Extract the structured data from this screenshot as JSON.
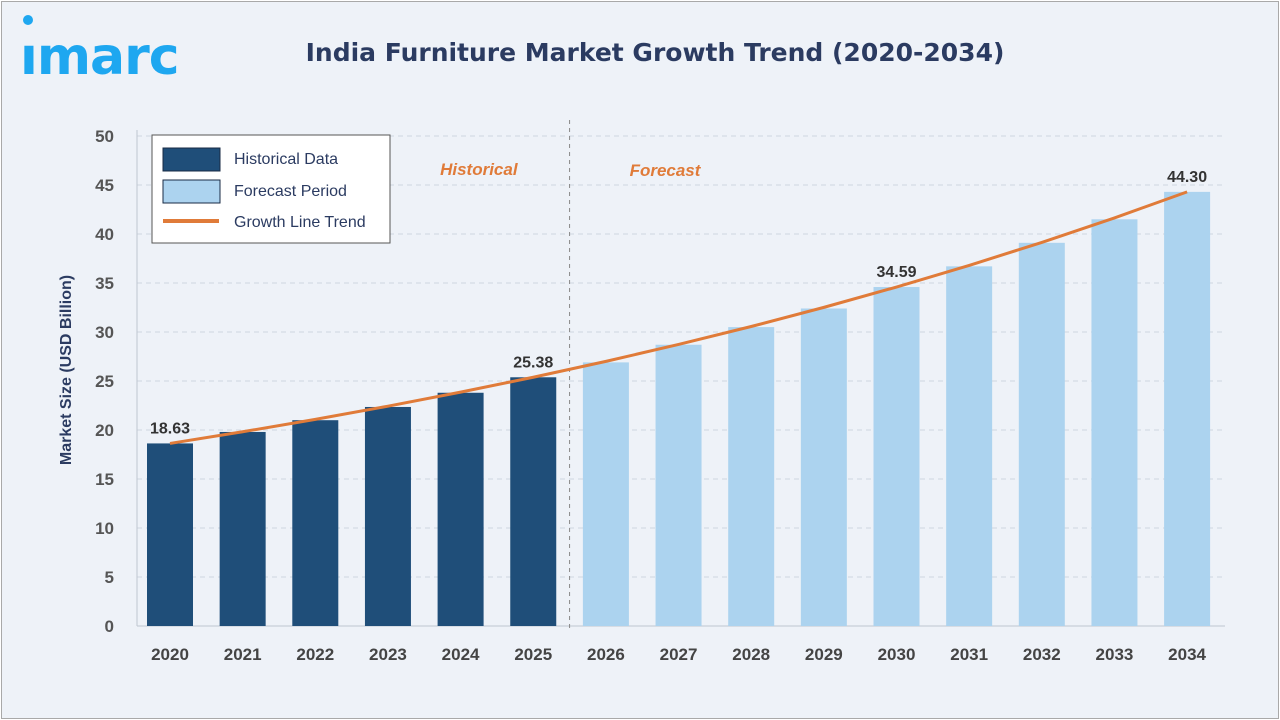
{
  "logo": {
    "text": "imarc",
    "color": "#1ea7f0"
  },
  "chart_data": {
    "type": "bar",
    "title": "India Furniture Market Growth Trend (2020-2034)",
    "xlabel": "",
    "ylabel": "Market Size (USD Billion)",
    "ylim": [
      0,
      50
    ],
    "yticks": [
      0,
      5,
      10,
      15,
      20,
      25,
      30,
      35,
      40,
      45,
      50
    ],
    "grid": true,
    "legend_position": "top-left",
    "categories": [
      "2020",
      "2021",
      "2022",
      "2023",
      "2024",
      "2025",
      "2026",
      "2027",
      "2028",
      "2029",
      "2030",
      "2031",
      "2032",
      "2033",
      "2034"
    ],
    "series": [
      {
        "name": "Historical Data",
        "color": "#1f4e79",
        "values": [
          18.63,
          19.8,
          21.0,
          22.35,
          23.8,
          25.38,
          null,
          null,
          null,
          null,
          null,
          null,
          null,
          null,
          null
        ]
      },
      {
        "name": "Forecast Period",
        "color": "#acd3ef",
        "values": [
          null,
          null,
          null,
          null,
          null,
          null,
          26.9,
          28.7,
          30.5,
          32.4,
          34.59,
          36.7,
          39.1,
          41.5,
          44.3
        ]
      },
      {
        "name": "Growth Line Trend",
        "color": "#e07b39",
        "type": "line",
        "start": 18.63,
        "end": 44.3
      }
    ],
    "data_labels": [
      {
        "category": "2020",
        "text": "18.63"
      },
      {
        "category": "2025",
        "text": "25.38"
      },
      {
        "category": "2030",
        "text": "34.59"
      },
      {
        "category": "2034",
        "text": "44.30"
      }
    ],
    "annotations": {
      "historical": "Historical",
      "forecast": "Forecast",
      "color": "#e07b39"
    }
  }
}
